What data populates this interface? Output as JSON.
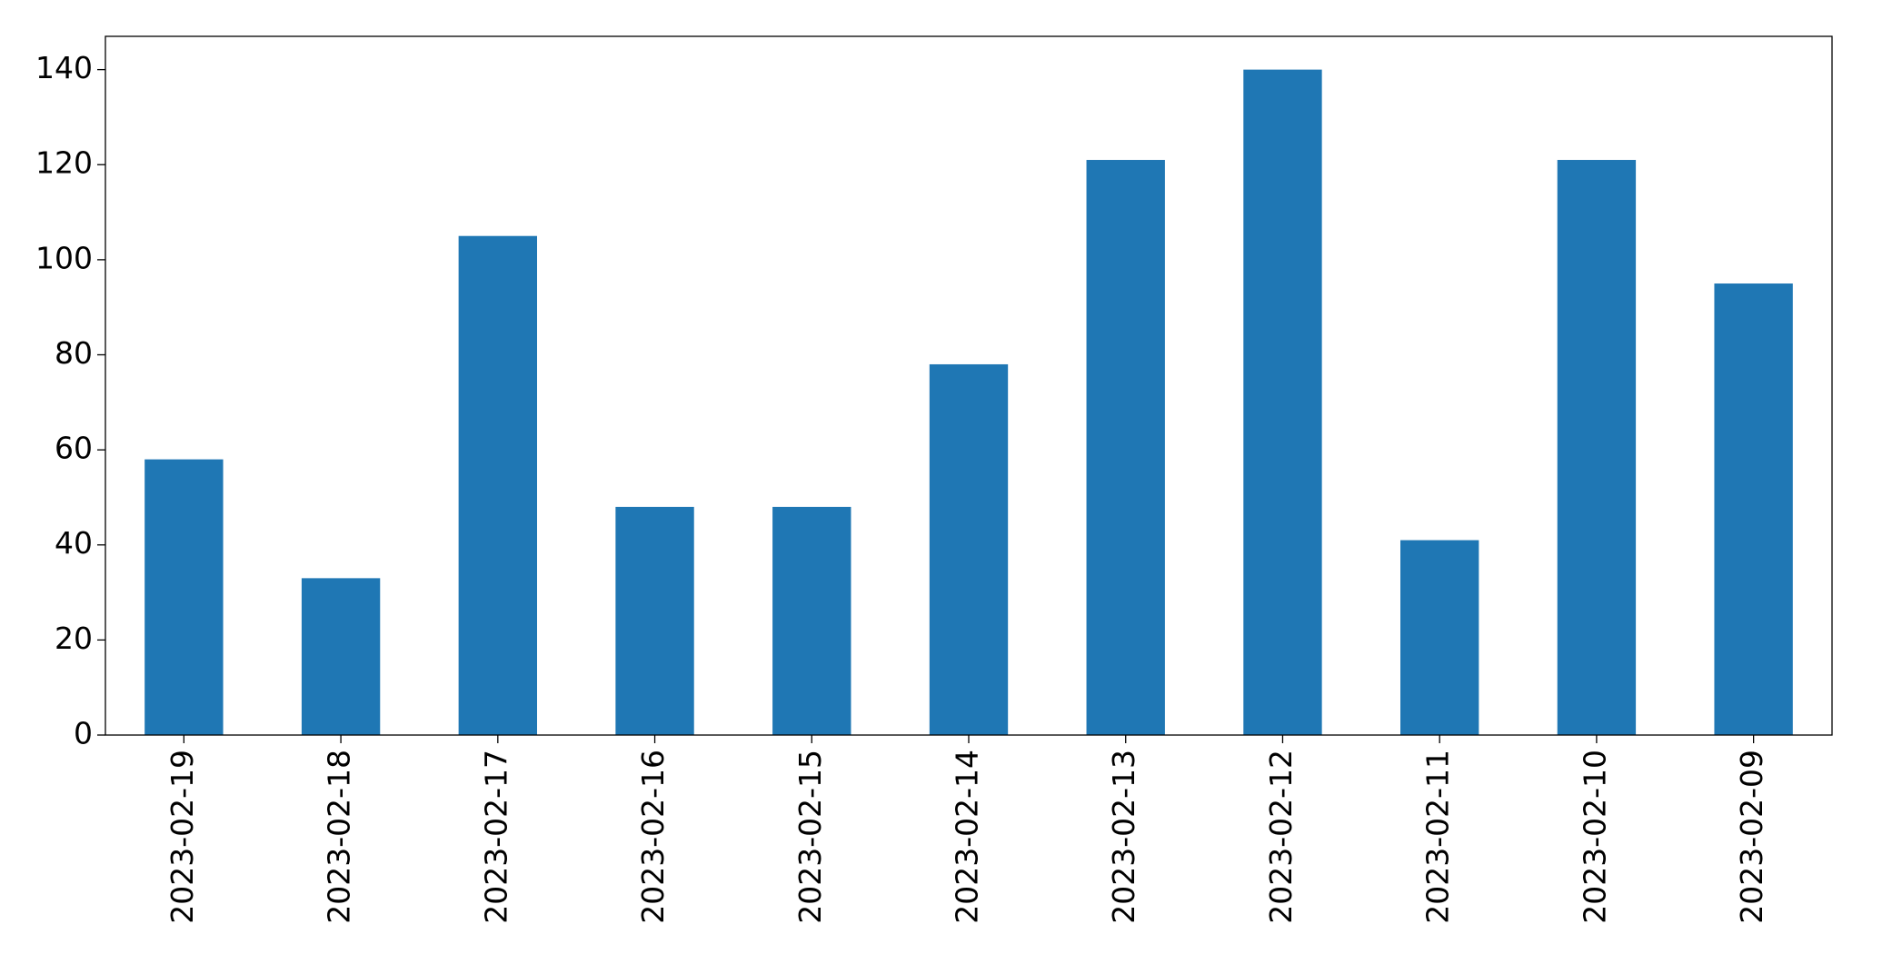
{
  "chart_data": {
    "type": "bar",
    "categories": [
      "2023-02-19",
      "2023-02-18",
      "2023-02-17",
      "2023-02-16",
      "2023-02-15",
      "2023-02-14",
      "2023-02-13",
      "2023-02-12",
      "2023-02-11",
      "2023-02-10",
      "2023-02-09"
    ],
    "values": [
      58,
      33,
      105,
      48,
      48,
      78,
      121,
      140,
      41,
      121,
      95
    ],
    "color": "#1f77b4",
    "ylim": [
      0,
      147
    ],
    "yticks": [
      0,
      20,
      40,
      60,
      80,
      100,
      120,
      140
    ],
    "grid": false
  }
}
